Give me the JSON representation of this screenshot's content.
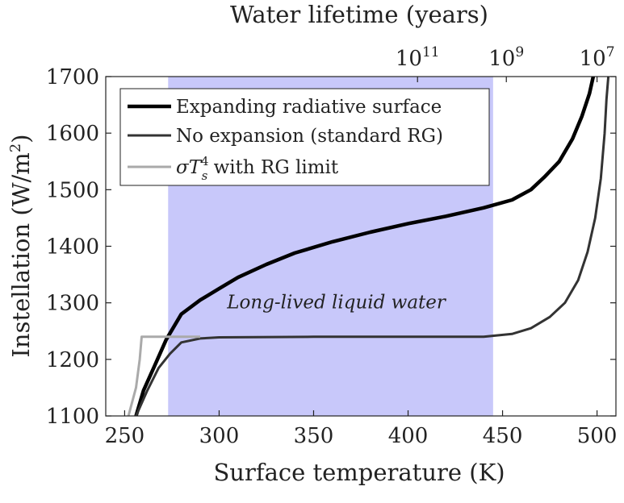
{
  "chart_data": {
    "type": "line",
    "xlabel": "Surface temperature (K)",
    "ylabel": "Instellation (W/m²)",
    "ylabel_parts": {
      "base": "Instellation (W/m",
      "sup": "2",
      "end": ")"
    },
    "top_axis_label": "Water lifetime (years)",
    "xlim": [
      240,
      510
    ],
    "ylim": [
      1100,
      1700
    ],
    "xticks": [
      250,
      300,
      350,
      400,
      450,
      500
    ],
    "yticks": [
      1100,
      1200,
      1300,
      1400,
      1500,
      1600,
      1700
    ],
    "top_ticks": [
      {
        "base": "10",
        "exp": "11",
        "x": 405
      },
      {
        "base": "10",
        "exp": "9",
        "x": 452
      },
      {
        "base": "10",
        "exp": "7",
        "x": 500
      }
    ],
    "shaded_region": {
      "x": [
        273,
        445
      ],
      "color": "#c8c8fa"
    },
    "annotation": {
      "text": "Long-lived liquid water",
      "x": 362,
      "y": 1290
    },
    "legend": {
      "position": "top-left"
    },
    "series": [
      {
        "name": "Expanding radiative surface",
        "color": "#000000",
        "width": 4.5,
        "points": [
          [
            256,
            1100
          ],
          [
            260,
            1145
          ],
          [
            266,
            1190
          ],
          [
            272,
            1235
          ],
          [
            280,
            1280
          ],
          [
            290,
            1305
          ],
          [
            300,
            1325
          ],
          [
            310,
            1345
          ],
          [
            325,
            1368
          ],
          [
            340,
            1388
          ],
          [
            360,
            1408
          ],
          [
            380,
            1425
          ],
          [
            400,
            1440
          ],
          [
            420,
            1453
          ],
          [
            440,
            1468
          ],
          [
            455,
            1482
          ],
          [
            465,
            1500
          ],
          [
            472,
            1522
          ],
          [
            480,
            1550
          ],
          [
            487,
            1590
          ],
          [
            492,
            1630
          ],
          [
            496,
            1670
          ],
          [
            498,
            1700
          ]
        ]
      },
      {
        "name": "No expansion (standard RG)",
        "color": "#333333",
        "width": 3,
        "points": [
          [
            256,
            1100
          ],
          [
            262,
            1145
          ],
          [
            268,
            1185
          ],
          [
            274,
            1210
          ],
          [
            280,
            1230
          ],
          [
            290,
            1237
          ],
          [
            300,
            1239
          ],
          [
            350,
            1240
          ],
          [
            400,
            1240
          ],
          [
            440,
            1240
          ],
          [
            455,
            1245
          ],
          [
            465,
            1255
          ],
          [
            475,
            1275
          ],
          [
            483,
            1300
          ],
          [
            490,
            1340
          ],
          [
            495,
            1390
          ],
          [
            499,
            1450
          ],
          [
            502,
            1520
          ],
          [
            504,
            1600
          ],
          [
            505,
            1660
          ],
          [
            506,
            1700
          ]
        ]
      },
      {
        "name": "σT_s^4 with RG limit",
        "label_parts": {
          "sigma": "σ",
          "T": "T",
          "sub": "s",
          "sup": "4",
          "rest": " with RG limit"
        },
        "color": "#aaaaaa",
        "width": 3,
        "points": [
          [
            252,
            1100
          ],
          [
            256,
            1150
          ],
          [
            258,
            1200
          ],
          [
            259,
            1240
          ],
          [
            265,
            1240
          ],
          [
            275,
            1240
          ],
          [
            290,
            1240
          ]
        ]
      }
    ]
  }
}
